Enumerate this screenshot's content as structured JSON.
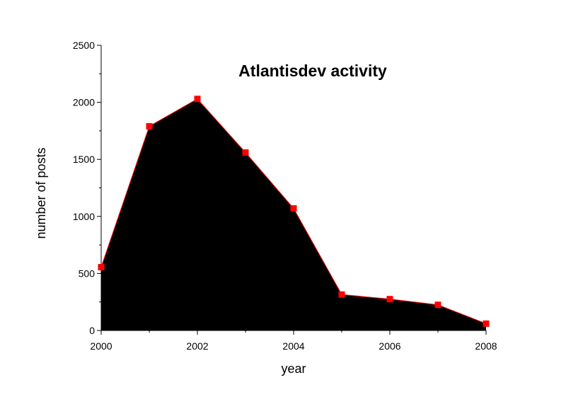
{
  "chart_data": {
    "type": "area",
    "title": "Atlantisdev activity",
    "xlabel": "year",
    "ylabel": "number of posts",
    "xlim": [
      2000,
      2008
    ],
    "ylim": [
      0,
      2500
    ],
    "x_ticks": [
      "2000",
      "2002",
      "2004",
      "2006",
      "2008"
    ],
    "y_ticks": [
      "0",
      "500",
      "1000",
      "1500",
      "2000",
      "2500"
    ],
    "grid": false,
    "legend": "none",
    "series": [
      {
        "x": [
          2000,
          2001,
          2002,
          2003,
          2004,
          2005,
          2006,
          2007,
          2008
        ],
        "values": [
          555,
          1790,
          2030,
          1560,
          1070,
          315,
          275,
          225,
          60
        ]
      }
    ],
    "colors": {
      "fill": "#000000",
      "line": "#ff0000",
      "marker": "#ff0000"
    }
  }
}
